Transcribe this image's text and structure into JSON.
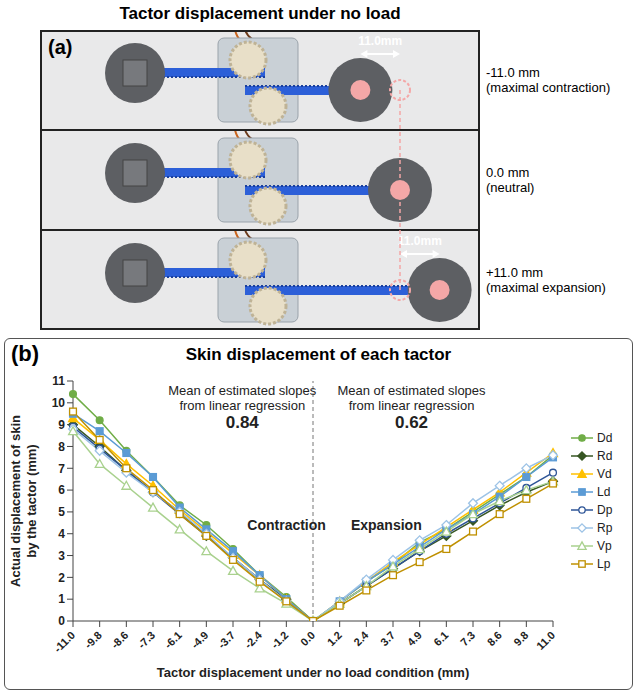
{
  "panel_a": {
    "label": "(a)",
    "title": "Tactor displacement under no load",
    "rows": [
      {
        "displacement": -11.0,
        "label": "-11.0 mm",
        "note": "(maximal contraction)",
        "arrow_label": "11.0mm"
      },
      {
        "displacement": 0.0,
        "label": "0.0 mm",
        "note": "(neutral)"
      },
      {
        "displacement": 11.0,
        "label": "+11.0 mm",
        "note": "(maximal expansion)",
        "arrow_label": "11.0mm"
      }
    ]
  },
  "chart_data": {
    "type": "line",
    "label": "(b)",
    "title": "Skin displacement of each tactor",
    "x_label": "Tactor displacement under no load condition (mm)",
    "y_label": "Actual displacement of skin by the tactor (mm)",
    "categories": [
      "-11.0",
      "-9.8",
      "-8.6",
      "-7.3",
      "-6.1",
      "-4.9",
      "-3.7",
      "-2.4",
      "-1.2",
      "0.0",
      "1.2",
      "2.4",
      "3.7",
      "4.9",
      "6.1",
      "7.3",
      "8.6",
      "9.8",
      "11.0"
    ],
    "series": [
      {
        "name": "Dd",
        "color": "#70ad47",
        "marker": "circle",
        "values": [
          10.4,
          9.2,
          7.8,
          6.6,
          5.3,
          4.4,
          3.3,
          2.1,
          1.1,
          0,
          0.9,
          1.8,
          2.6,
          3.6,
          4.2,
          5.0,
          5.8,
          6.6,
          7.6
        ]
      },
      {
        "name": "Rd",
        "color": "#375623",
        "marker": "diamond",
        "values": [
          9.0,
          8.0,
          6.9,
          5.9,
          5.0,
          3.9,
          2.9,
          1.9,
          1.0,
          0,
          0.8,
          1.6,
          2.4,
          3.2,
          3.9,
          4.6,
          5.3,
          5.9,
          6.4
        ]
      },
      {
        "name": "Vd",
        "color": "#ffc000",
        "marker": "triangle",
        "values": [
          9.3,
          8.3,
          7.2,
          6.2,
          5.1,
          4.1,
          3.1,
          2.1,
          1.0,
          0,
          0.9,
          1.8,
          2.7,
          3.5,
          4.3,
          5.1,
          5.9,
          6.8,
          7.7
        ]
      },
      {
        "name": "Ld",
        "color": "#5b9bd5",
        "marker": "square",
        "values": [
          9.5,
          8.7,
          7.7,
          6.6,
          5.2,
          4.2,
          3.2,
          2.1,
          1.0,
          0,
          0.9,
          1.8,
          2.6,
          3.4,
          4.2,
          4.9,
          5.7,
          6.6,
          7.5
        ]
      },
      {
        "name": "Dp",
        "color": "#2e5597",
        "marker": "circle-open",
        "values": [
          8.9,
          7.9,
          6.9,
          5.9,
          4.9,
          3.9,
          2.9,
          1.9,
          0.9,
          0,
          0.8,
          1.6,
          2.4,
          3.2,
          4.0,
          4.7,
          5.4,
          6.1,
          6.8
        ]
      },
      {
        "name": "Rp",
        "color": "#9dc3e6",
        "marker": "diamond-open",
        "values": [
          8.8,
          7.8,
          6.8,
          5.9,
          5.0,
          4.0,
          2.9,
          1.9,
          0.9,
          0,
          0.9,
          1.9,
          2.8,
          3.7,
          4.4,
          5.4,
          6.2,
          7.0,
          7.6
        ]
      },
      {
        "name": "Vp",
        "color": "#a9d18e",
        "marker": "triangle-open",
        "values": [
          8.7,
          7.2,
          6.2,
          5.2,
          4.2,
          3.2,
          2.3,
          1.5,
          0.8,
          0,
          0.8,
          1.6,
          2.5,
          3.3,
          4.1,
          4.9,
          5.5,
          6.0,
          6.4
        ]
      },
      {
        "name": "Lp",
        "color": "#bf9000",
        "marker": "square-open",
        "values": [
          9.6,
          8.3,
          7.0,
          6.0,
          4.9,
          3.9,
          2.8,
          1.8,
          0.9,
          0,
          0.7,
          1.4,
          2.1,
          2.7,
          3.3,
          4.1,
          4.9,
          5.6,
          6.3
        ]
      }
    ],
    "annotations": [
      {
        "text": "Mean of estimated slopes from linear regression",
        "value": 0.84,
        "label": "Contraction"
      },
      {
        "text": "Mean of estimated slopes from linear regression",
        "value": 0.62,
        "label": "Expansion"
      }
    ],
    "ylim": [
      0,
      11
    ],
    "yticks": [
      0,
      1,
      2,
      3,
      4,
      5,
      6,
      7,
      8,
      9,
      10,
      11
    ],
    "grid": false,
    "legend": "right"
  }
}
